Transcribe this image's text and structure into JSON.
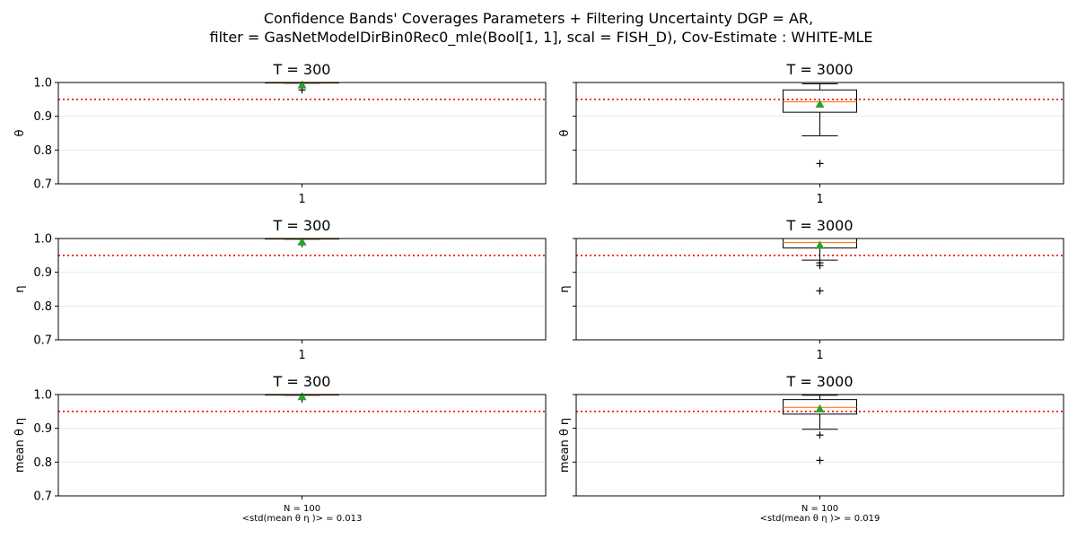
{
  "figure": {
    "title_line1": "Confidence Bands' Coverages Parameters + Filtering Uncertainty DGP = AR,",
    "title_line2": "filter = GasNetModelDirBin0Rec0_mle(Bool[1, 1], scal = FISH_D), Cov-Estimate : WHITE-MLE"
  },
  "colors": {
    "reference_line": "#ff0000",
    "median": "#ff7f0e",
    "mean_marker": "#2ca02c",
    "box": "#000000",
    "grid": "#e6e6e6"
  },
  "chart_data": [
    {
      "type": "box",
      "title": "T = 300",
      "ylabel": "θ",
      "ylim": [
        0.7,
        1.0
      ],
      "yticks": [
        "0.7",
        "0.8",
        "0.9",
        "1.0"
      ],
      "xticks": [
        "1"
      ],
      "reference_line": 0.95,
      "grid": "horizontal",
      "box": {
        "q1": 0.999,
        "median": 1.0,
        "q3": 1.0,
        "whisker_low": 0.998,
        "whisker_high": 1.0,
        "mean": 0.993,
        "outliers": [
          0.978
        ]
      }
    },
    {
      "type": "box",
      "title": "T = 3000",
      "ylabel": "θ",
      "ylim": [
        0.7,
        1.0
      ],
      "yticks": [
        "0.7",
        "0.8",
        "0.9",
        "1.0"
      ],
      "xticks": [
        "1"
      ],
      "reference_line": 0.95,
      "grid": "horizontal",
      "box": {
        "q1": 0.912,
        "median": 0.943,
        "q3": 0.978,
        "whisker_low": 0.842,
        "whisker_high": 0.996,
        "mean": 0.936,
        "outliers": [
          0.76
        ]
      }
    },
    {
      "type": "box",
      "title": "T = 300",
      "ylabel": "η",
      "ylim": [
        0.7,
        1.0
      ],
      "yticks": [
        "0.7",
        "0.8",
        "0.9",
        "1.0"
      ],
      "xticks": [
        "1"
      ],
      "reference_line": 0.95,
      "grid": "horizontal",
      "box": {
        "q1": 0.999,
        "median": 1.0,
        "q3": 1.0,
        "whisker_low": 0.998,
        "whisker_high": 1.0,
        "mean": 0.99,
        "outliers": [
          0.985
        ]
      }
    },
    {
      "type": "box",
      "title": "T = 3000",
      "ylabel": "η",
      "ylim": [
        0.7,
        1.0
      ],
      "yticks": [
        "0.7",
        "0.8",
        "0.9",
        "1.0"
      ],
      "xticks": [
        "1"
      ],
      "reference_line": 0.95,
      "grid": "horizontal",
      "box": {
        "q1": 0.972,
        "median": 0.988,
        "q3": 1.0,
        "whisker_low": 0.936,
        "whisker_high": 1.0,
        "mean": 0.98,
        "outliers": [
          0.928,
          0.92,
          0.845
        ]
      }
    },
    {
      "type": "box",
      "title": "T = 300",
      "ylabel": "mean θ η",
      "ylim": [
        0.7,
        1.0
      ],
      "yticks": [
        "0.7",
        "0.8",
        "0.9",
        "1.0"
      ],
      "xticks": [
        "N = 100\n<std(mean θ η )> =  0.013"
      ],
      "reference_line": 0.95,
      "grid": "horizontal",
      "box": {
        "q1": 0.999,
        "median": 1.0,
        "q3": 1.0,
        "whisker_low": 0.998,
        "whisker_high": 1.0,
        "mean": 0.994,
        "outliers": [
          0.987
        ]
      }
    },
    {
      "type": "box",
      "title": "T = 3000",
      "ylabel": "mean θ η",
      "ylim": [
        0.7,
        1.0
      ],
      "yticks": [
        "0.7",
        "0.8",
        "0.9",
        "1.0"
      ],
      "xticks": [
        "N = 100\n<std(mean θ η )> =  0.019"
      ],
      "reference_line": 0.95,
      "grid": "horizontal",
      "box": {
        "q1": 0.942,
        "median": 0.962,
        "q3": 0.985,
        "whisker_low": 0.897,
        "whisker_high": 0.998,
        "mean": 0.958,
        "outliers": [
          0.88,
          0.805
        ]
      }
    }
  ]
}
